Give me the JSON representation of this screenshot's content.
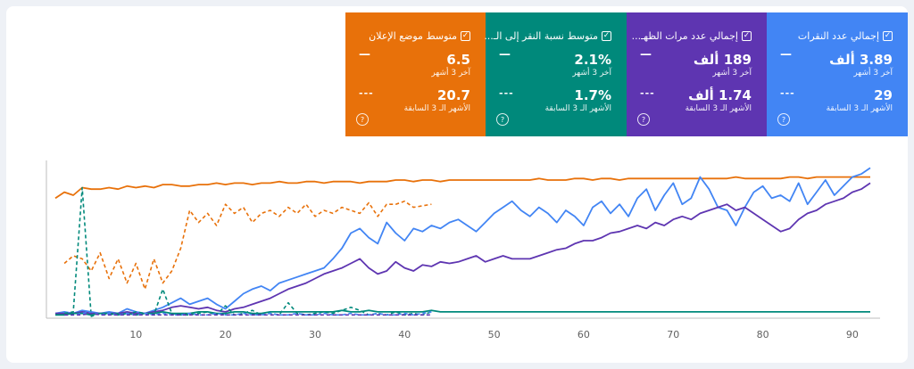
{
  "metrics": [
    {
      "id": "clicks",
      "title": "إجمالي عدد النقرات",
      "current": "3.89 ألف",
      "current_label": "آخر 3 أشهر",
      "previous": "29",
      "previous_label": "الأشهر الـ 3 السابقة",
      "color": "#4285f4"
    },
    {
      "id": "impressions",
      "title": "إجمالي عدد مرات الظهـ...",
      "current": "189 ألف",
      "current_label": "آخر 3 أشهر",
      "previous": "1.74 ألف",
      "previous_label": "الأشهر الـ 3 السابقة",
      "color": "#5e35b1"
    },
    {
      "id": "ctr",
      "title": "متوسط نسبة النقر إلى الـ...",
      "current": "2.1%",
      "current_label": "آخر 3 أشهر",
      "previous": "1.7%",
      "previous_label": "الأشهر الـ 3 السابقة",
      "color": "#00897b"
    },
    {
      "id": "position",
      "title": "متوسط موضع الإعلان",
      "current": "6.5",
      "current_label": "آخر 3 أشهر",
      "previous": "20.7",
      "previous_label": "الأشهر الـ 3 السابقة",
      "color": "#e8710a"
    }
  ],
  "chart_data": {
    "type": "line",
    "xlabel": "",
    "ylabel": "",
    "x_ticks": [
      "10",
      "20",
      "30",
      "40",
      "50",
      "60",
      "70",
      "80",
      "90"
    ],
    "xlim": [
      0,
      93
    ],
    "ylim": [
      0,
      100
    ],
    "series": [
      {
        "color": "#e8710a",
        "style": "solid",
        "x_start": 1,
        "values": [
          78,
          82,
          80,
          85,
          84,
          84,
          85,
          84,
          86,
          85,
          86,
          85,
          87,
          87,
          86,
          86,
          87,
          87,
          88,
          87,
          88,
          88,
          87,
          88,
          88,
          89,
          88,
          88,
          89,
          89,
          88,
          89,
          89,
          89,
          88,
          89,
          89,
          89,
          90,
          90,
          89,
          90,
          90,
          89,
          90,
          90,
          90,
          90,
          90,
          90,
          90,
          90,
          90,
          90,
          91,
          90,
          90,
          90,
          91,
          91,
          90,
          91,
          91,
          90,
          91,
          91,
          91,
          91,
          91,
          91,
          91,
          91,
          91,
          91,
          91,
          91,
          92,
          91,
          91,
          91,
          91,
          91,
          92,
          92,
          91,
          92,
          92,
          92,
          92,
          92,
          92,
          92
        ]
      },
      {
        "color": "#e8710a",
        "style": "dashed",
        "x_start": 2,
        "values": [
          35,
          40,
          38,
          30,
          42,
          25,
          38,
          22,
          35,
          18,
          38,
          22,
          30,
          45,
          70,
          62,
          68,
          60,
          74,
          68,
          72,
          62,
          68,
          70,
          66,
          72,
          68,
          74,
          66,
          70,
          68,
          72,
          70,
          68,
          75,
          66,
          74,
          74,
          76,
          72,
          73,
          74
        ]
      },
      {
        "color": "#4285f4",
        "style": "solid",
        "x_start": 1,
        "values": [
          2,
          3,
          2,
          4,
          3,
          2,
          3,
          2,
          5,
          3,
          2,
          4,
          6,
          9,
          12,
          8,
          10,
          12,
          8,
          5,
          10,
          15,
          18,
          20,
          17,
          22,
          24,
          26,
          28,
          30,
          32,
          38,
          45,
          55,
          58,
          52,
          48,
          62,
          55,
          50,
          58,
          56,
          60,
          58,
          62,
          64,
          60,
          56,
          62,
          68,
          72,
          76,
          70,
          66,
          72,
          68,
          62,
          70,
          66,
          60,
          72,
          76,
          68,
          74,
          66,
          78,
          84,
          70,
          80,
          88,
          74,
          78,
          92,
          84,
          72,
          70,
          60,
          72,
          82,
          86,
          78,
          80,
          76,
          88,
          74,
          82,
          90,
          80,
          86,
          92,
          94,
          98
        ]
      },
      {
        "color": "#5e35b1",
        "style": "solid",
        "x_start": 1,
        "values": [
          2,
          2,
          2,
          3,
          2,
          2,
          2,
          2,
          3,
          2,
          2,
          3,
          4,
          6,
          7,
          6,
          5,
          6,
          4,
          3,
          5,
          6,
          8,
          10,
          12,
          15,
          18,
          20,
          22,
          25,
          28,
          30,
          32,
          35,
          38,
          32,
          28,
          30,
          36,
          32,
          30,
          34,
          33,
          36,
          35,
          36,
          38,
          40,
          36,
          38,
          40,
          38,
          38,
          38,
          40,
          42,
          44,
          45,
          48,
          50,
          50,
          52,
          55,
          56,
          58,
          60,
          58,
          62,
          60,
          64,
          66,
          64,
          68,
          70,
          72,
          74,
          70,
          72,
          68,
          64,
          60,
          56,
          58,
          64,
          68,
          70,
          74,
          76,
          78,
          82,
          84,
          88
        ]
      },
      {
        "color": "#00897b",
        "style": "solid",
        "x_start": 1,
        "values": [
          1,
          1,
          2,
          2,
          1,
          2,
          2,
          1,
          2,
          1,
          2,
          2,
          3,
          2,
          2,
          2,
          3,
          3,
          2,
          2,
          3,
          3,
          2,
          2,
          3,
          3,
          3,
          3,
          3,
          3,
          3,
          3,
          4,
          3,
          3,
          4,
          3,
          3,
          3,
          3,
          3,
          3,
          4,
          3,
          3,
          3,
          3,
          3,
          3,
          3,
          3,
          3,
          3,
          3,
          3,
          3,
          3,
          3,
          3,
          3,
          3,
          3,
          3,
          3,
          3,
          3,
          3,
          3,
          3,
          3,
          3,
          3,
          3,
          3,
          3,
          3,
          3,
          3,
          3,
          3,
          3,
          3,
          3,
          3,
          3,
          3,
          3,
          3,
          3,
          3,
          3,
          3
        ]
      },
      {
        "color": "#00897b",
        "style": "dashed",
        "x_start": 2,
        "values": [
          2,
          3,
          85,
          0,
          2,
          1,
          2,
          1,
          3,
          2,
          1,
          18,
          2,
          1,
          1,
          2,
          3,
          1,
          7,
          1,
          2,
          4,
          1,
          2,
          1,
          9,
          2,
          1,
          2,
          3,
          2,
          4,
          6,
          4,
          1,
          2,
          1,
          3,
          1,
          2,
          1,
          3
        ]
      },
      {
        "color": "#4285f4",
        "style": "dashed",
        "x_start": 2,
        "values": [
          1,
          1,
          2,
          3,
          1,
          2,
          1,
          2,
          1,
          2,
          1,
          2,
          1,
          1,
          2,
          1,
          1,
          2,
          1,
          1,
          2,
          1,
          1,
          2,
          1,
          1,
          2,
          1,
          1,
          2,
          1,
          1,
          2,
          1,
          1,
          2,
          1,
          1,
          2,
          1,
          2,
          3
        ]
      },
      {
        "color": "#5e35b1",
        "style": "dashed",
        "x_start": 2,
        "values": [
          1,
          1,
          1,
          2,
          1,
          1,
          1,
          1,
          1,
          1,
          1,
          1,
          1,
          1,
          1,
          1,
          1,
          1,
          1,
          1,
          1,
          1,
          1,
          1,
          1,
          1,
          1,
          1,
          1,
          1,
          1,
          1,
          1,
          1,
          1,
          1,
          1,
          1,
          1,
          1,
          1,
          1
        ]
      }
    ]
  }
}
